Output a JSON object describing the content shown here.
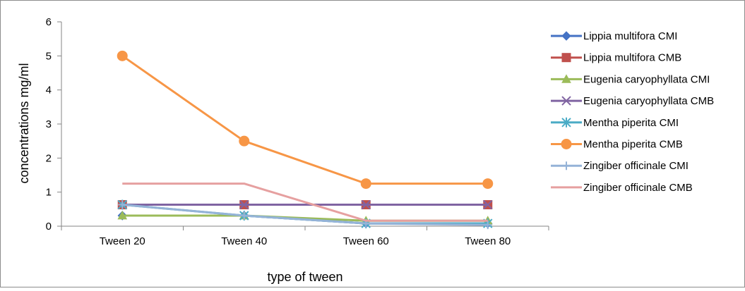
{
  "chart_data": {
    "type": "line",
    "title": "",
    "xlabel": "type of tween",
    "ylabel": "concentrations mg/ml",
    "ylim": [
      0,
      6
    ],
    "yticks": [
      0,
      1,
      2,
      3,
      4,
      5,
      6
    ],
    "grid": false,
    "legend": "right",
    "categories": [
      "Tween 20",
      "Tween 40",
      "Tween 60",
      "Tween 80"
    ],
    "series": [
      {
        "name": "Lippia multifora CMI",
        "values": [
          0.31,
          0.31,
          0.08,
          0.08
        ],
        "color": "#4472c4",
        "marker": "diamond"
      },
      {
        "name": "Lippia multifora CMB",
        "values": [
          0.63,
          0.63,
          0.63,
          0.63
        ],
        "color": "#c0504d",
        "marker": "square"
      },
      {
        "name": "Eugenia caryophyllata CMI",
        "values": [
          0.31,
          0.31,
          0.16,
          0.16
        ],
        "color": "#9bbb59",
        "marker": "triangle"
      },
      {
        "name": "Eugenia caryophyllata CMB",
        "values": [
          0.63,
          0.63,
          0.63,
          0.63
        ],
        "color": "#8064a2",
        "marker": "x"
      },
      {
        "name": "Mentha piperita CMI",
        "values": [
          0.63,
          0.31,
          0.08,
          0.08
        ],
        "color": "#4bacc6",
        "marker": "star"
      },
      {
        "name": "Mentha piperita CMB",
        "values": [
          5,
          2.5,
          1.25,
          1.25
        ],
        "color": "#f79646",
        "marker": "circle"
      },
      {
        "name": "Zingiber officinale CMI",
        "values": [
          0.63,
          0.31,
          0.08,
          0.04
        ],
        "color": "#95b3d7",
        "marker": "plus"
      },
      {
        "name": "Zingiber officinale CMB",
        "values": [
          1.25,
          1.25,
          0.16,
          0.16
        ],
        "color": "#e6a0a0",
        "marker": "dash"
      }
    ]
  }
}
